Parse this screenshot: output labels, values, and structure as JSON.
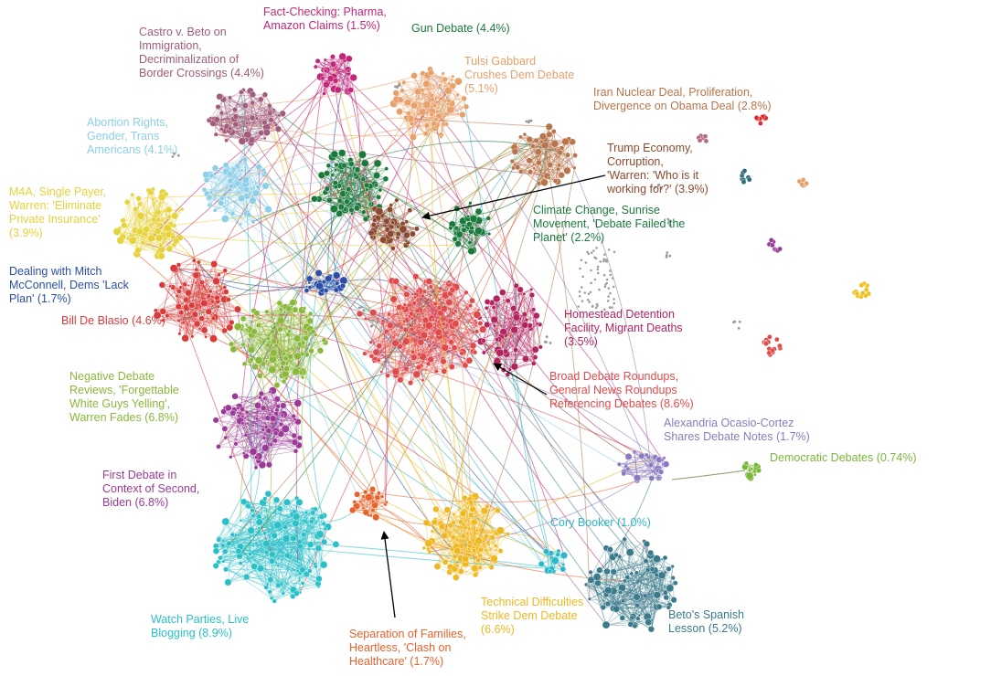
{
  "clusters": [
    {
      "id": "fact",
      "label": "Fact-Checking: Pharma,\nAmazon Claims (1.5%)",
      "color": "#c2267a"
    },
    {
      "id": "gun",
      "label": "Gun Debate (4.4%)",
      "color": "#1a7a3c"
    },
    {
      "id": "castro",
      "label": "Castro v. Beto on\nImmigration,\nDecriminalization of\nBorder Crossings (4.4%)",
      "color": "#a05c7a"
    },
    {
      "id": "tulsi",
      "label": "Tulsi Gabbard\nCrushes Dem Debate\n(5.1%)",
      "color": "#e8a06a"
    },
    {
      "id": "iran",
      "label": "Iran Nuclear Deal, Proliferation,\nDivergence on Obama Deal (2.8%)",
      "color": "#b8744a"
    },
    {
      "id": "abortion",
      "label": "Abortion Rights,\nGender, Trans\nAmericans (4.1%)",
      "color": "#8ecfe8"
    },
    {
      "id": "trump",
      "label": "Trump Economy,\nCorruption,\n'Warren: 'Who is it\nworking for?' (3.9%)",
      "color": "#8b4a2f"
    },
    {
      "id": "m4a",
      "label": "M4A, Single Payer,\nWarren: 'Eliminate\nPrivate Insurance'\n(3.9%)",
      "color": "#e6d23a"
    },
    {
      "id": "climate",
      "label": "Climate Change, Sunrise\nMovement, 'Debate Failed the\nPlanet' (2.2%)",
      "color": "#1a7a3c"
    },
    {
      "id": "mitch",
      "label": "Dealing with Mitch\nMcConnell, Dems 'Lack\nPlan' (1.7%)",
      "color": "#2a4fa8"
    },
    {
      "id": "deblasio",
      "label": "Bill De Blasio (4.6%)",
      "color": "#d93a3a"
    },
    {
      "id": "homestead",
      "label": "Homestead Detention\nFacility, Migrant Deaths\n(3.5%)",
      "color": "#b2245e"
    },
    {
      "id": "negative",
      "label": "Negative Debate\nReviews, 'Forgettable\nWhite Guys Yelling',\nWarren Fades (6.8%)",
      "color": "#8ab83a"
    },
    {
      "id": "broad",
      "label": "Broad Debate Roundups,\nGeneral News Roundups\nReferencing Debates (8.6%)",
      "color": "#e04a4a"
    },
    {
      "id": "aoc",
      "label": "Alexandria Ocasio-Cortez\nShares Debate Notes (1.7%)",
      "color": "#8a7ac0"
    },
    {
      "id": "demdebates",
      "label": "Democratic Debates (0.74%)",
      "color": "#7ab83a"
    },
    {
      "id": "first",
      "label": "First Debate in\nContext of Second,\nBiden (6.8%)",
      "color": "#9a3a96"
    },
    {
      "id": "booker",
      "label": "Cory Booker (1.0%)",
      "color": "#2ab8c8"
    },
    {
      "id": "watch",
      "label": "Watch Parties, Live\nBlogging (8.9%)",
      "color": "#2ac0c8"
    },
    {
      "id": "technical",
      "label": "Technical Difficulties\nStrike Dem Debate\n(6.6%)",
      "color": "#f0b820"
    },
    {
      "id": "beto",
      "label": "Beto's Spanish\nLesson (5.2%)",
      "color": "#3a7a8a"
    },
    {
      "id": "separation",
      "label": "Separation of Families,\nHeartless, 'Clash on\nHealthcare' (1.7%)",
      "color": "#e8622a"
    }
  ]
}
